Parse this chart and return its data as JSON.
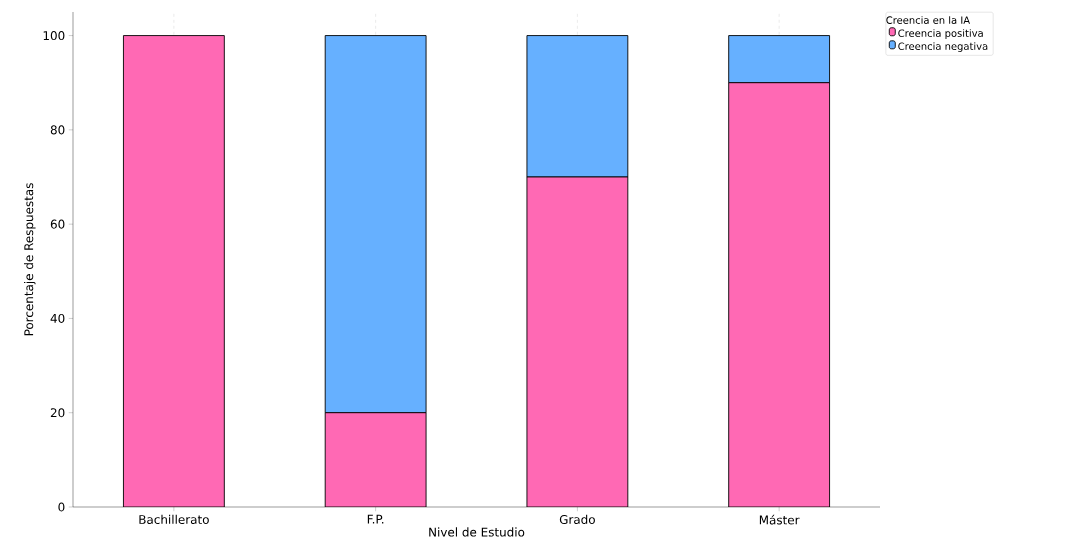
{
  "chart_data": {
    "type": "bar",
    "stacked": true,
    "categories": [
      "Bachillerato",
      "F.P.",
      "Grado",
      "Máster"
    ],
    "series": [
      {
        "name": "Creencia positiva",
        "color": "#ff69b4",
        "values": [
          100,
          20,
          70,
          90
        ]
      },
      {
        "name": "Creencia negativa",
        "color": "#66b0ff",
        "values": [
          0,
          80,
          30,
          10
        ]
      }
    ],
    "xlabel": "Nivel de Estudio",
    "ylabel": "Porcentaje de Respuestas",
    "legend_title": "Creencia en la IA",
    "ylim": [
      0,
      105
    ],
    "yticks": [
      0,
      20,
      40,
      60,
      80,
      100
    ],
    "grid": "x",
    "legend": "top right"
  }
}
